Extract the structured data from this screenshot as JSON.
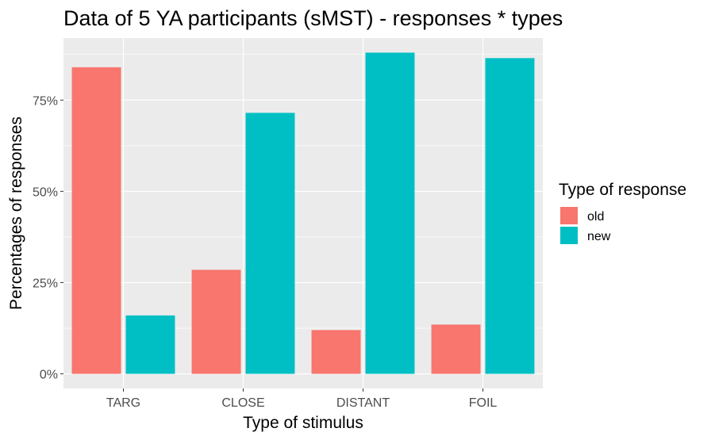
{
  "chart_data": {
    "type": "bar",
    "title": "Data of 5 YA participants (sMST) - responses * types",
    "xlabel": "Type of stimulus",
    "ylabel": "Percentages of responses",
    "categories": [
      "TARG",
      "CLOSE",
      "DISTANT",
      "FOIL"
    ],
    "series": [
      {
        "name": "old",
        "color": "#F8766D",
        "values": [
          0.84,
          0.285,
          0.12,
          0.135
        ]
      },
      {
        "name": "new",
        "color": "#00BFC4",
        "values": [
          0.16,
          0.715,
          0.88,
          0.865
        ]
      }
    ],
    "ylim": [
      -0.04,
      0.92
    ],
    "yticks": [
      0,
      0.25,
      0.5,
      0.75
    ],
    "ytick_labels": [
      "0%",
      "25%",
      "50%",
      "75%"
    ],
    "legend": {
      "title": "Type of response",
      "position": "right"
    },
    "grid": true,
    "panel_background": "#EBEBEB"
  }
}
